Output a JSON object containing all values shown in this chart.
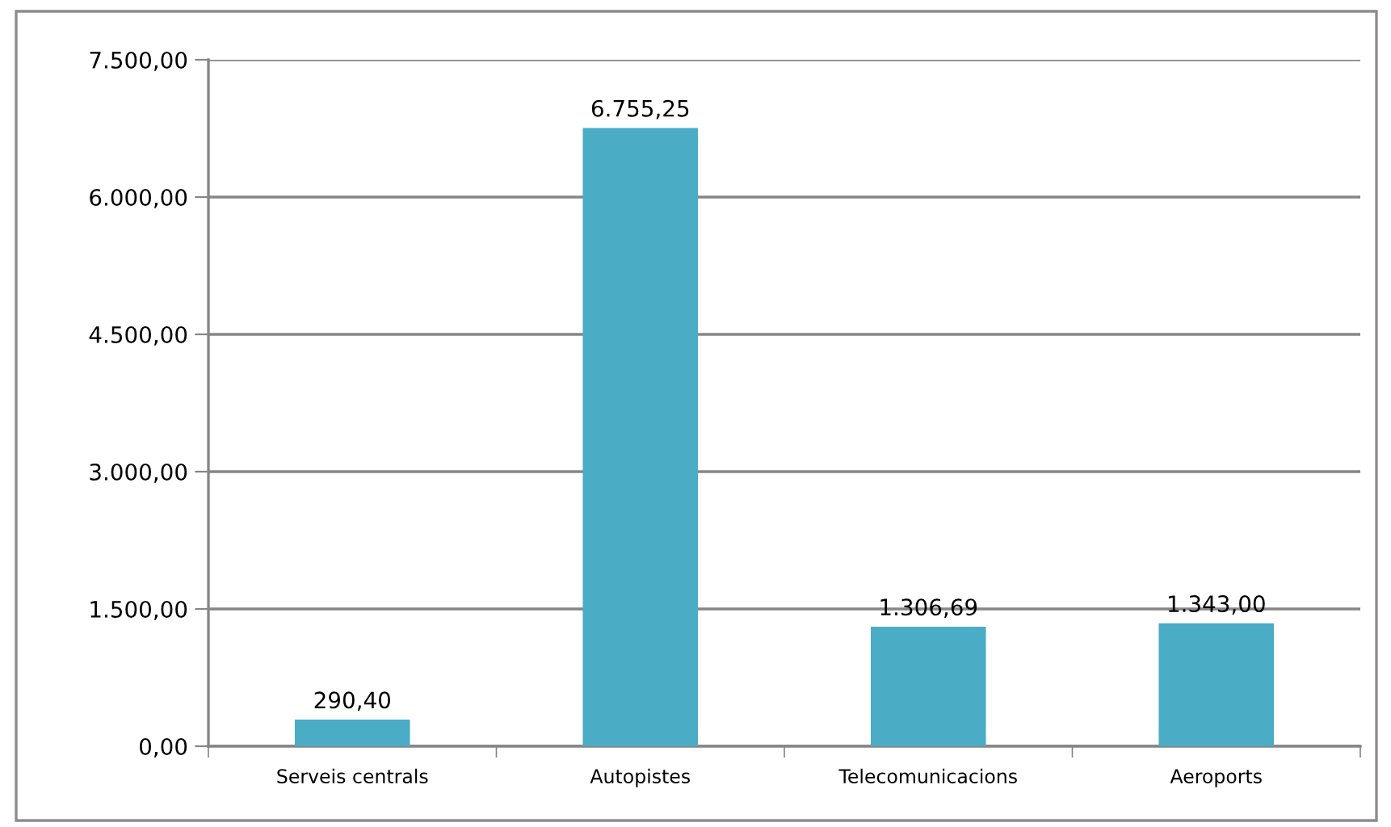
{
  "chart_data": {
    "type": "bar",
    "categories": [
      "Serveis centrals",
      "Autopistes",
      "Telecomunicacions",
      "Aeroports"
    ],
    "values": [
      290.4,
      6755.25,
      1306.69,
      1343.0
    ],
    "color": "#4bacc6",
    "value_labels": [
      "290,40",
      "6.755,25",
      "1.306,69",
      "1.343,00"
    ],
    "ylim": [
      0,
      7500
    ],
    "yticks": [
      {
        "value": 0,
        "label": "0,00"
      },
      {
        "value": 1500,
        "label": "1.500,00"
      },
      {
        "value": 3000,
        "label": "3.000,00"
      },
      {
        "value": 4500,
        "label": "4.500,00"
      },
      {
        "value": 6000,
        "label": "6.000,00"
      },
      {
        "value": 7500,
        "label": "7.500,00"
      }
    ],
    "grid": "y"
  }
}
